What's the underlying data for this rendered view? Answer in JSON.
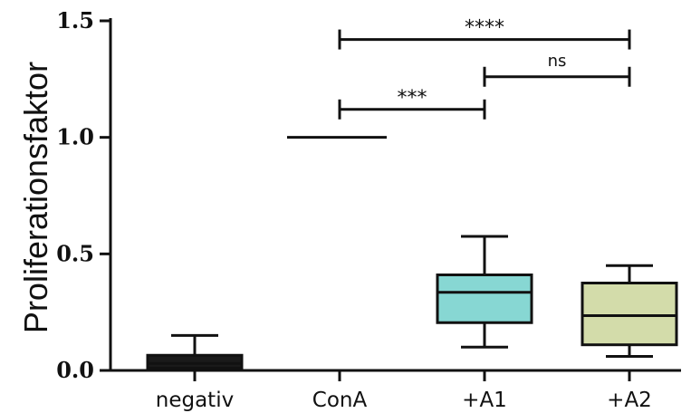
{
  "chart_data": {
    "type": "box",
    "title": "",
    "xlabel": "",
    "ylabel": "Proliferationsfaktor",
    "ylim": [
      0,
      1.5
    ],
    "yticks": [
      "0.0",
      "0.5",
      "1.0",
      "1.5"
    ],
    "categories": [
      "negativ",
      "ConA",
      "+A1",
      "+A2"
    ],
    "grid": false,
    "boxes": [
      {
        "category": "negativ",
        "min": 0.0,
        "q1": 0.01,
        "median": 0.03,
        "q3": 0.065,
        "max": 0.15,
        "color": "#1a1a1a"
      },
      {
        "category": "ConA",
        "value": 1.0,
        "line_only": true
      },
      {
        "category": "+A1",
        "min": 0.1,
        "q1": 0.205,
        "median": 0.335,
        "q3": 0.41,
        "max": 0.575,
        "color": "#87d7d3"
      },
      {
        "category": "+A2",
        "min": 0.06,
        "q1": 0.11,
        "median": 0.235,
        "q3": 0.375,
        "max": 0.45,
        "color": "#d3dcaa"
      }
    ],
    "significance": [
      {
        "from": "ConA",
        "to": "+A1",
        "y": 1.12,
        "label": "***"
      },
      {
        "from": "+A1",
        "to": "+A2",
        "y": 1.26,
        "label": "ns"
      },
      {
        "from": "ConA",
        "to": "+A2",
        "y": 1.42,
        "label": "****"
      }
    ]
  }
}
